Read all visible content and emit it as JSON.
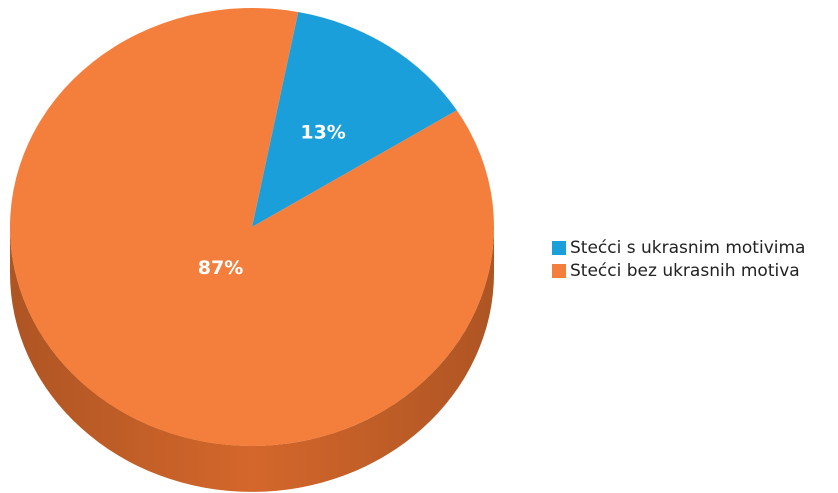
{
  "chart_data": {
    "type": "pie",
    "categories": [
      "Stećci s ukrasnim motivima",
      "Stećci bez ukrasnih motiva"
    ],
    "values": [
      13,
      87
    ],
    "data_labels": [
      "13%",
      "87%"
    ],
    "colors": [
      "#1a9fdb",
      "#f47f3c"
    ],
    "side_colors": [
      "#137aab",
      "#d4672b"
    ],
    "style": "3d-tilted",
    "legend_position": "right"
  }
}
